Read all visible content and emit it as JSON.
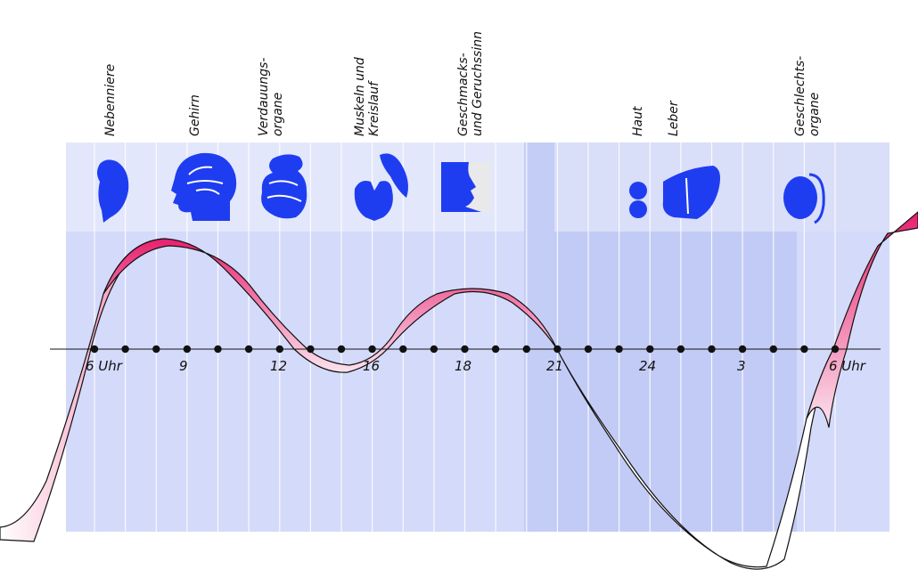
{
  "organs": [
    {
      "lines": [
        "Nebenniere"
      ],
      "icon": "adrenal-gland-icon"
    },
    {
      "lines": [
        "Gehirn"
      ],
      "icon": "brain-head-icon"
    },
    {
      "lines": [
        "Verdauungs-",
        "organe"
      ],
      "icon": "intestines-icon"
    },
    {
      "lines": [
        "Muskeln und",
        "Kreislauf"
      ],
      "icon": "heart-lungs-muscle-icon"
    },
    {
      "lines": [
        "Geschmacks-",
        "und Geruchssinn"
      ],
      "icon": "face-profile-icon"
    },
    {
      "lines": [
        "Haut"
      ],
      "icon": "skin-cells-icon"
    },
    {
      "lines": [
        "Leber"
      ],
      "icon": "liver-icon"
    },
    {
      "lines": [
        "Geschlechts-",
        "organe"
      ],
      "icon": "reproductive-organ-icon"
    }
  ],
  "time_axis": {
    "labels": [
      "6 Uhr",
      "9",
      "12",
      "16",
      "18",
      "21",
      "24",
      "3",
      "6 Uhr"
    ],
    "dot_count": 25
  },
  "colors": {
    "panel_light": "#dfe3fb",
    "panel_mid": "#d0d6f8",
    "panel_night": "#c2cbf5",
    "icon_blue": "#1f3df0",
    "ribbon_pink": "#e8206e",
    "ribbon_white": "#ffffff"
  }
}
